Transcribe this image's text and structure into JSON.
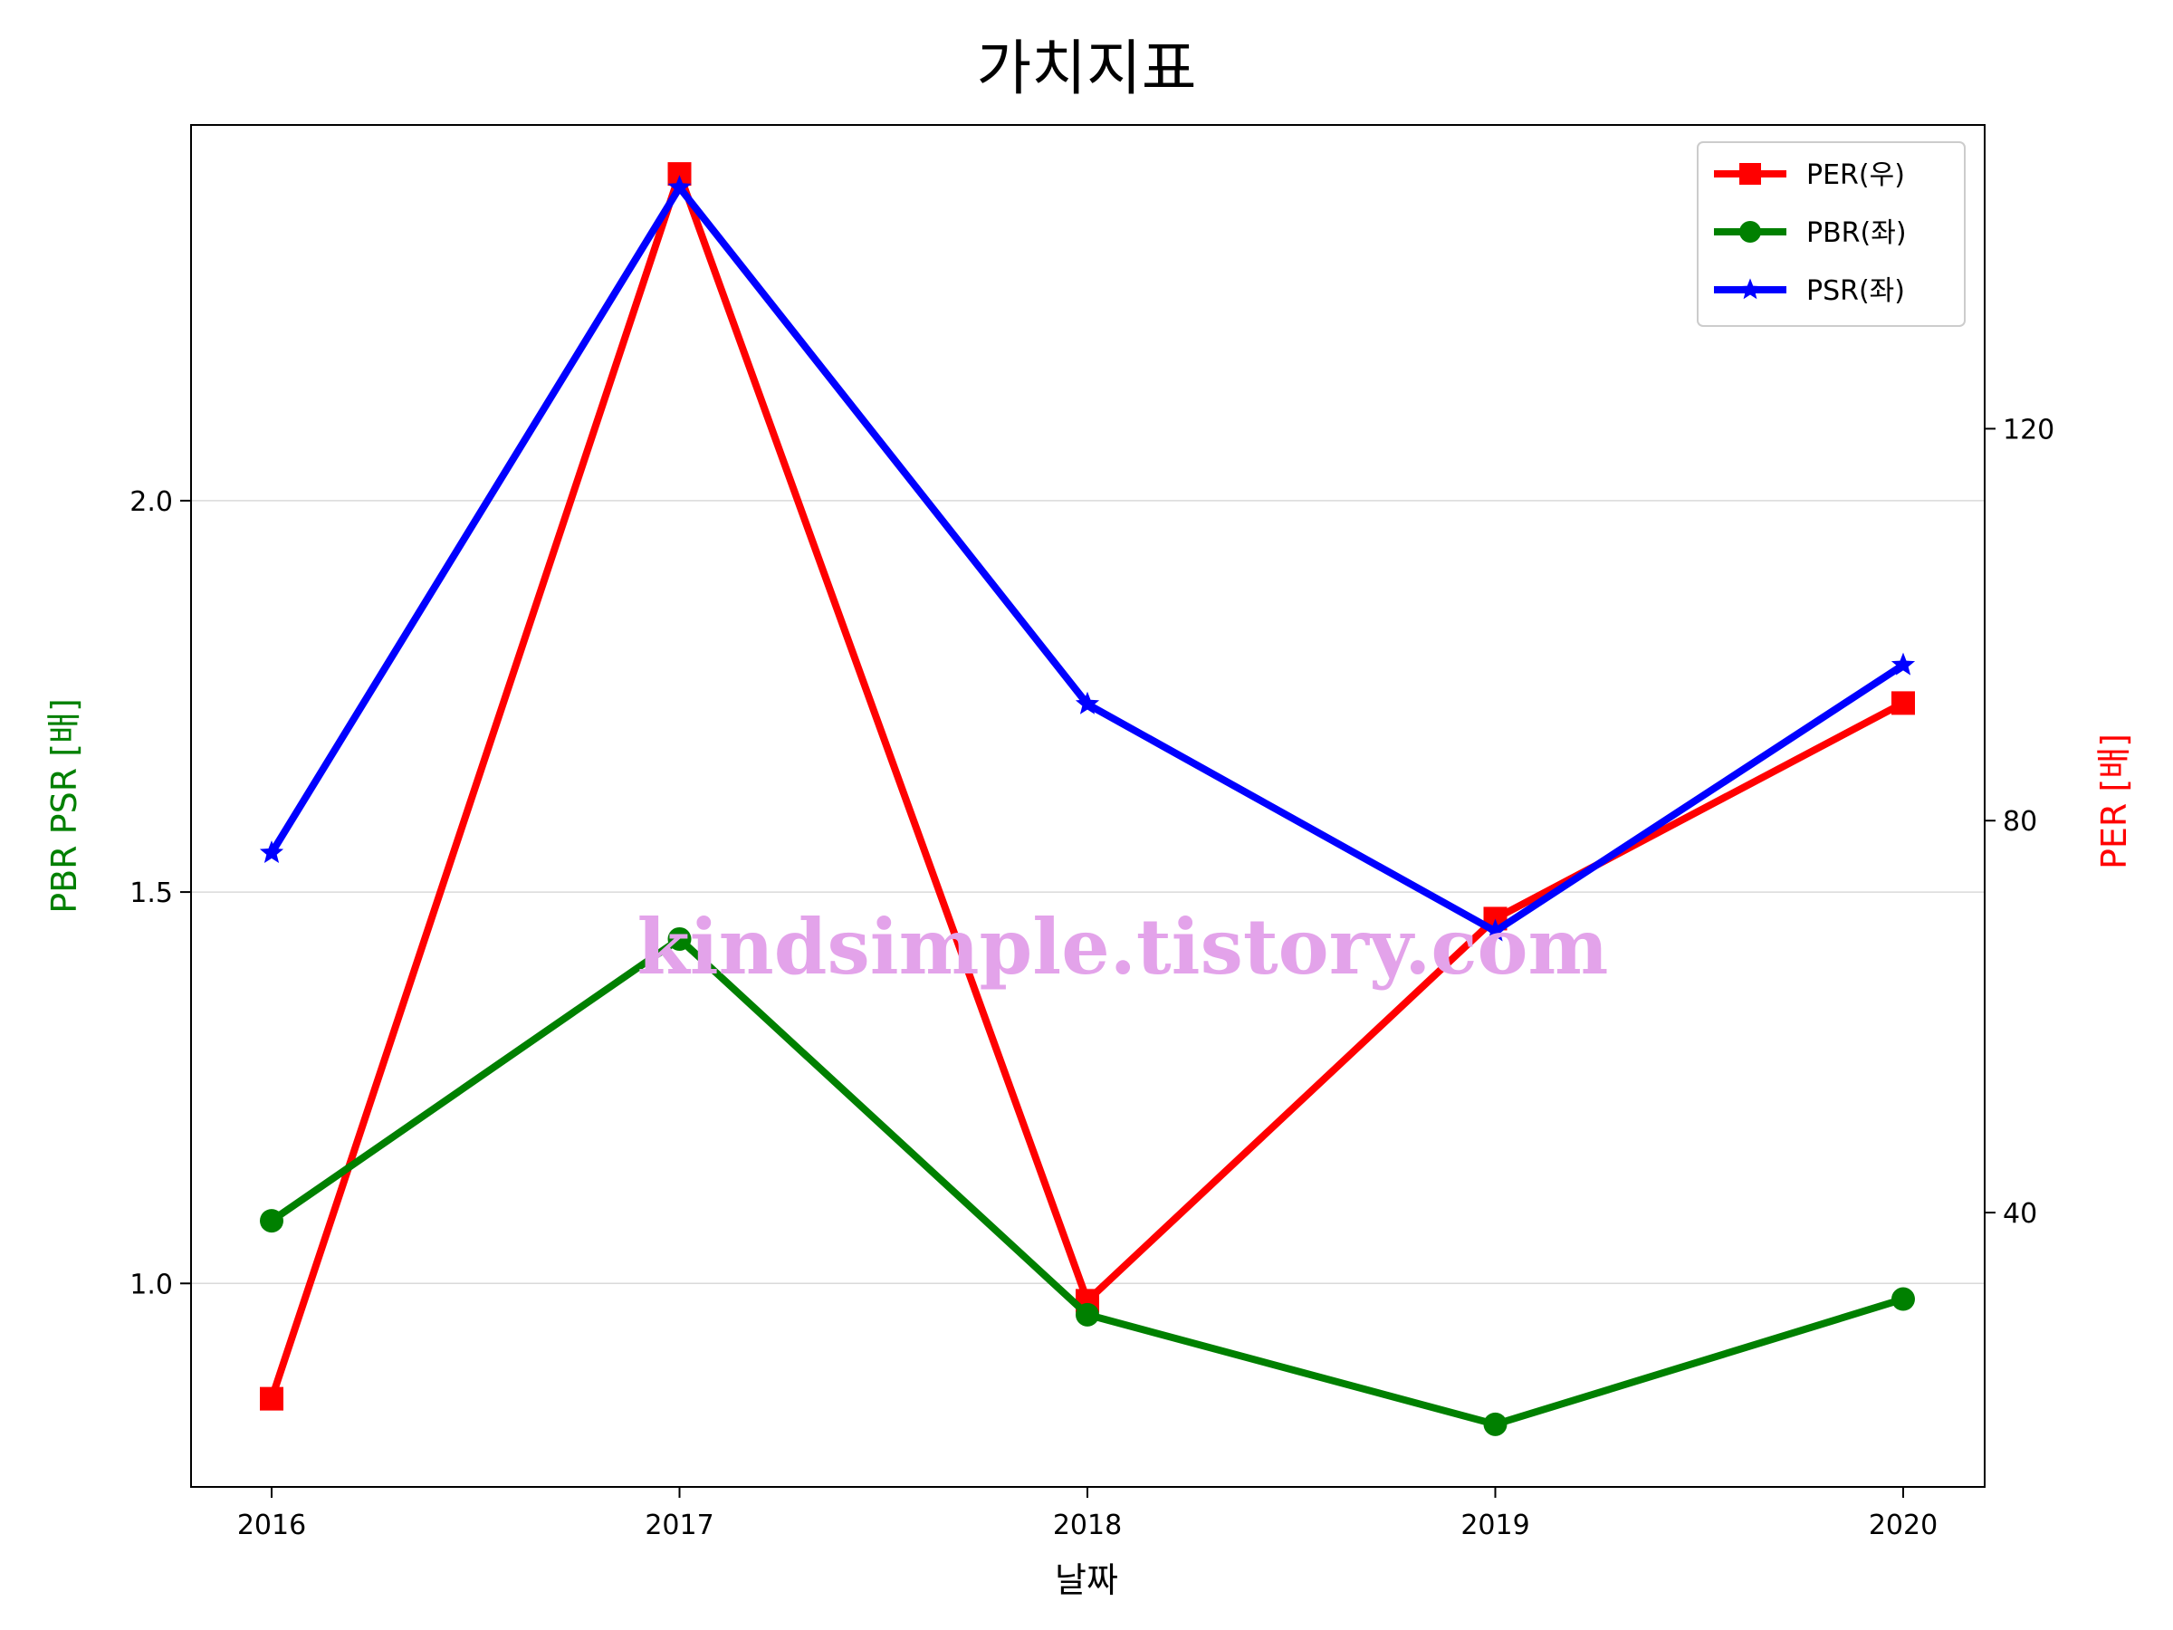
{
  "chart_data": {
    "type": "line",
    "title": "가치지표",
    "xlabel": "날짜",
    "ylabel_left": "PBR PSR [배]",
    "ylabel_right": "PER [배]",
    "categories": [
      "2016",
      "2017",
      "2018",
      "2019",
      "2020"
    ],
    "left_axis": {
      "ylim": [
        0.74,
        2.48
      ],
      "ticks": [
        1.0,
        1.5,
        2.0
      ],
      "tick_labels": [
        "1.0",
        "1.5",
        "2.0"
      ],
      "grid": true
    },
    "right_axis": {
      "ylim": [
        12,
        151
      ],
      "ticks": [
        40,
        80,
        120
      ],
      "tick_labels": [
        "40",
        "80",
        "120"
      ]
    },
    "series": [
      {
        "name": "PER(우)",
        "axis": "right",
        "color": "#ff0000",
        "marker": "square",
        "values": [
          21,
          146,
          31,
          70,
          92
        ]
      },
      {
        "name": "PBR(좌)",
        "axis": "left",
        "color": "#008000",
        "marker": "circle",
        "values": [
          1.08,
          1.44,
          0.96,
          0.82,
          0.98
        ]
      },
      {
        "name": "PSR(좌)",
        "axis": "left",
        "color": "#0000ff",
        "marker": "star",
        "values": [
          1.55,
          2.4,
          1.74,
          1.45,
          1.79
        ]
      }
    ],
    "legend_position": "top-right",
    "watermark": "kindsimple.tistory.com"
  }
}
